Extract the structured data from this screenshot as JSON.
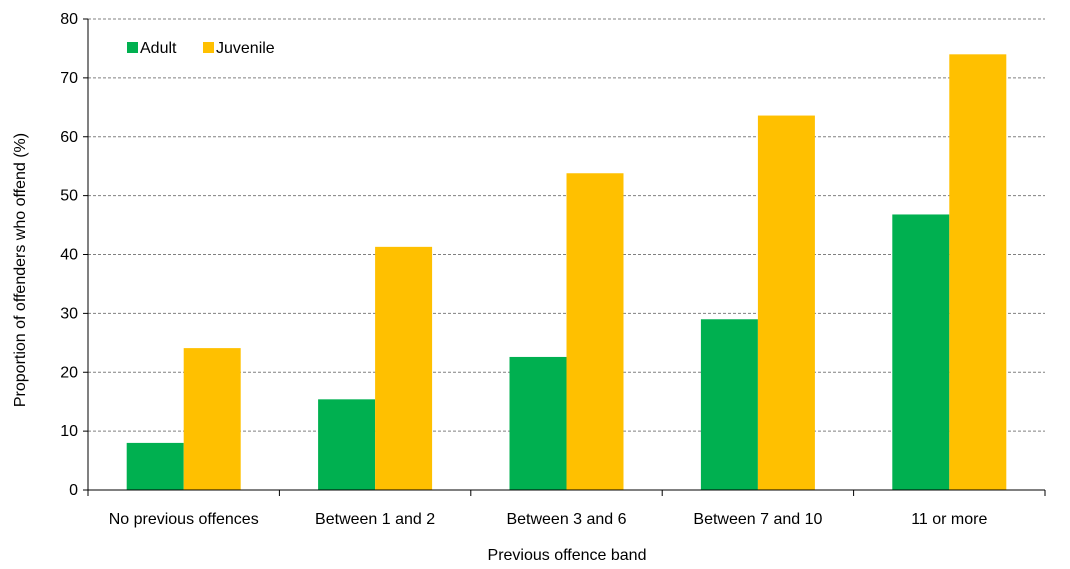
{
  "chart_data": {
    "type": "bar",
    "title": "",
    "xlabel": "Previous offence band",
    "ylabel": "Proportion of offenders who offend (%)",
    "categories": [
      "No previous offences",
      "Between 1 and 2",
      "Between 3 and 6",
      "Between 7 and 10",
      "11 or more"
    ],
    "series": [
      {
        "name": "Adult",
        "color": "#00b050",
        "values": [
          8.0,
          15.4,
          22.6,
          29.0,
          46.8
        ]
      },
      {
        "name": "Juvenile",
        "color": "#ffc000",
        "values": [
          24.1,
          41.3,
          53.8,
          63.6,
          74.0
        ]
      }
    ],
    "ylim": [
      0,
      80
    ],
    "yticks": [
      0,
      10,
      20,
      30,
      40,
      50,
      60,
      70,
      80
    ],
    "grid": true,
    "grid_style": "dashed-horizontal",
    "legend_position": "top-left"
  }
}
